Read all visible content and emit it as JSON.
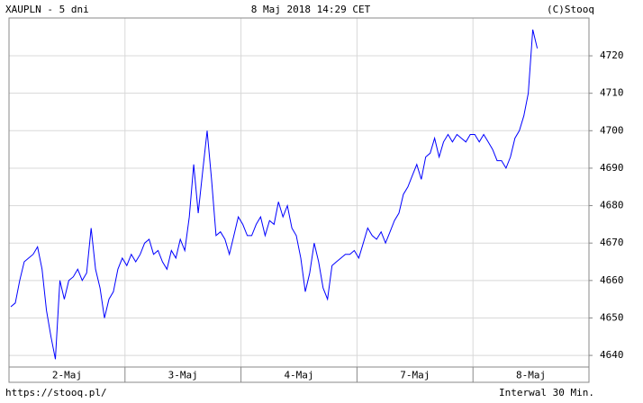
{
  "chart_data": {
    "type": "line",
    "title": "XAUPLN - 5 dni",
    "subtitle": "8 Maj 2018 14:29 CET",
    "source": "(C)Stooq",
    "url": "https://stooq.pl/",
    "interval": "Interwal 30 Min.",
    "color": "#0000ff",
    "grid": true,
    "categories": [
      "2-Maj",
      "3-Maj",
      "4-Maj",
      "7-Maj",
      "8-Maj"
    ],
    "values": [
      [
        4653,
        4654,
        4660,
        4665,
        4666,
        4667,
        4669,
        4663,
        4652,
        4645,
        4639,
        4660,
        4655,
        4660,
        4661,
        4663,
        4660,
        4662,
        4674,
        4663,
        4658,
        4650,
        4655,
        4657,
        4663,
        4666
      ],
      [
        4664,
        4667,
        4665,
        4667,
        4670,
        4671,
        4667,
        4668,
        4665,
        4663,
        4668,
        4666,
        4671,
        4668,
        4677,
        4691,
        4678,
        4689,
        4700,
        4687,
        4672,
        4673,
        4671,
        4667,
        4672,
        4677
      ],
      [
        4675,
        4672,
        4672,
        4675,
        4677,
        4672,
        4676,
        4675,
        4681,
        4677,
        4680,
        4674,
        4672,
        4666,
        4657,
        4662,
        4670,
        4665,
        4658,
        4655,
        4664,
        4665,
        4666,
        4667,
        4667,
        4668
      ],
      [
        4666,
        4670,
        4674,
        4672,
        4671,
        4673,
        4670,
        4673,
        4676,
        4678,
        4683,
        4685,
        4688,
        4691,
        4687,
        4693,
        4694,
        4698,
        4693,
        4697,
        4699,
        4697,
        4699,
        4698,
        4697,
        4699
      ],
      [
        4699,
        4697,
        4699,
        4697,
        4695,
        4692,
        4692,
        4690,
        4693,
        4698,
        4700,
        4704,
        4710,
        4727,
        4722
      ]
    ],
    "ylim": [
      4636.9,
      4730.1
    ],
    "yticks": [
      4640,
      4650,
      4660,
      4670,
      4680,
      4690,
      4700,
      4710,
      4720
    ]
  }
}
